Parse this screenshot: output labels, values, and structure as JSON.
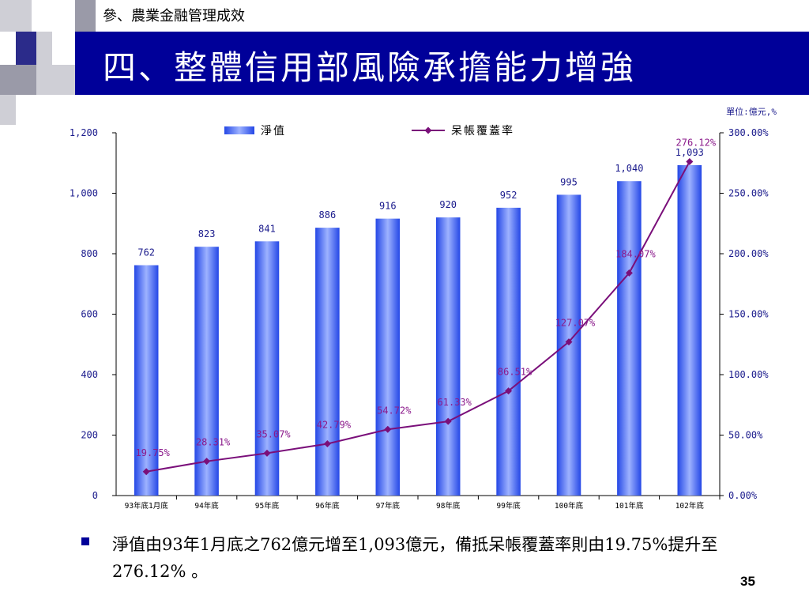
{
  "section_label": "參、農業金融管理成效",
  "title": "四、整體信用部風險承擔能力增強",
  "unit_label": "單位:億元,%",
  "summary_text": "淨值由93年1月底之762億元增至1,093億元，備抵呆帳覆蓋率則由19.75%提升至276.12% 。",
  "page_number": "35",
  "colors": {
    "title_bar": "#000099",
    "bar_fill": "#3b63f2",
    "line": "#7a0f7a",
    "axis_text": "#1a1a8c",
    "rate_label": "#8b1a8b"
  },
  "chart_data": {
    "type": "bar+line",
    "categories": [
      "93年底1月底",
      "94年底",
      "95年底",
      "96年底",
      "97年底",
      "98年底",
      "99年底",
      "100年底",
      "101年底",
      "102年底"
    ],
    "series": [
      {
        "name": "淨值",
        "type": "bar",
        "axis": "left",
        "values": [
          762,
          823,
          841,
          886,
          916,
          920,
          952,
          995,
          1040,
          1093
        ],
        "labels": [
          "762",
          "823",
          "841",
          "886",
          "916",
          "920",
          "952",
          "995",
          "1,040",
          "1,093"
        ]
      },
      {
        "name": "呆帳覆蓋率",
        "type": "line",
        "axis": "right",
        "values": [
          19.75,
          28.31,
          35.07,
          42.79,
          54.72,
          61.33,
          86.51,
          127.07,
          184.07,
          276.12
        ],
        "labels": [
          "19.75%",
          "28.31%",
          "35.07%",
          "42.79%",
          "54.72%",
          "61.33%",
          "86.51%",
          "127.07%",
          "184.07%",
          "276.12%"
        ]
      }
    ],
    "left_axis": {
      "min": 0,
      "max": 1200,
      "ticks": [
        {
          "value": 0,
          "label": "0"
        },
        {
          "value": 200,
          "label": "200"
        },
        {
          "value": 400,
          "label": "400"
        },
        {
          "value": 600,
          "label": "600"
        },
        {
          "value": 800,
          "label": "800"
        },
        {
          "value": 1000,
          "label": "1,000"
        },
        {
          "value": 1200,
          "label": "1,200"
        }
      ]
    },
    "right_axis": {
      "min": 0,
      "max": 300,
      "ticks": [
        {
          "value": 0,
          "label": "0.00%"
        },
        {
          "value": 50,
          "label": "50.00%"
        },
        {
          "value": 100,
          "label": "100.00%"
        },
        {
          "value": 150,
          "label": "150.00%"
        },
        {
          "value": 200,
          "label": "200.00%"
        },
        {
          "value": 250,
          "label": "250.00%"
        },
        {
          "value": 300,
          "label": "300.00%"
        }
      ]
    },
    "legend": [
      "淨值",
      "呆帳覆蓋率"
    ],
    "legend_position": "top",
    "grid": false
  }
}
